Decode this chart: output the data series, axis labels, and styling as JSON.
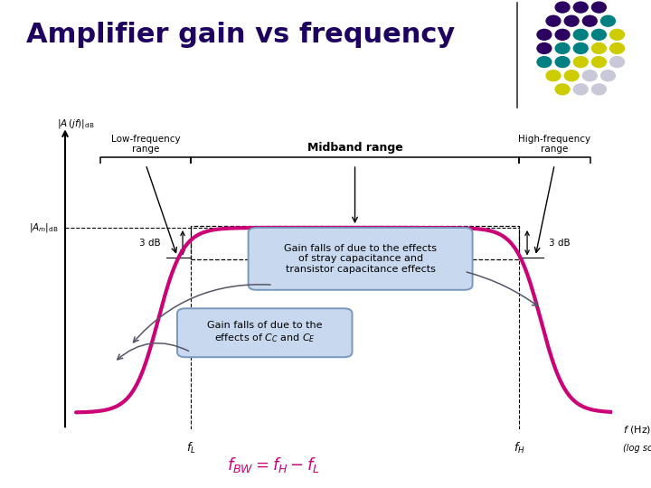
{
  "title": "Amplifier gain vs frequency",
  "title_color": "#1E0060",
  "title_fontsize": 22,
  "bg_color": "#FFFFFF",
  "curve_color": "#CC0077",
  "curve_linewidth": 3.0,
  "midband_label": "Midband range",
  "low_freq_label": "Low-frequency\nrange",
  "high_freq_label": "High-frequency\nrange",
  "box1_text": "Gain falls of due to the effects\nof stray capacitance and\ntransistor capacitance effects",
  "box2_text": "Gain falls of due to the\neffects of C_C and C_E",
  "formula_bg": "#CCFF33",
  "dot_rows": [
    [
      "#2B0060",
      "#2B0060",
      "#2B0060"
    ],
    [
      "#2B0060",
      "#2B0060",
      "#2B0060",
      "#008080"
    ],
    [
      "#2B0060",
      "#2B0060",
      "#008080",
      "#008080",
      "#CCCC00"
    ],
    [
      "#2B0060",
      "#008080",
      "#008080",
      "#CCCC00",
      "#CCCC00"
    ],
    [
      "#008080",
      "#008080",
      "#CCCC00",
      "#CCCC00",
      "#C8C8D8"
    ],
    [
      "#CCCC00",
      "#CCCC00",
      "#C8C8D8",
      "#C8C8D8"
    ],
    [
      "#CCCC00",
      "#C8C8D8",
      "#C8C8D8"
    ]
  ]
}
